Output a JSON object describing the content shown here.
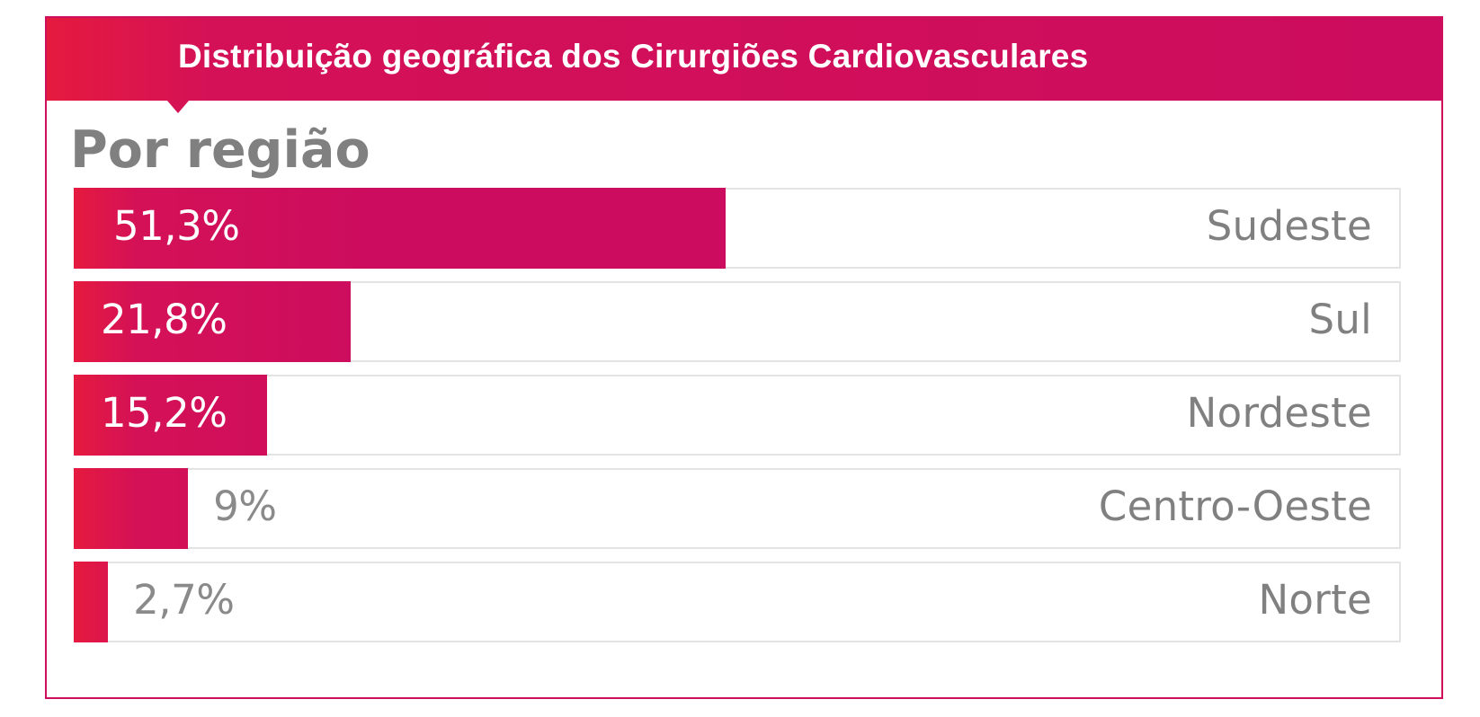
{
  "chart_data": {
    "type": "bar",
    "orientation": "horizontal",
    "title": "Distribuição geográfica dos Cirurgiões Cardiovasculares",
    "subtitle": "Por região",
    "unit": "%",
    "xlim": [
      0,
      100
    ],
    "grid": false,
    "legend": "none",
    "categories": [
      "Sudeste",
      "Sul",
      "Nordeste",
      "Centro-Oeste",
      "Norte"
    ],
    "values": [
      51.3,
      21.8,
      15.2,
      9,
      2.7
    ],
    "labels": [
      "51,3%",
      "21,8%",
      "15,2%",
      "9%",
      "2,7%"
    ]
  },
  "colors": {
    "accent": "#cc0c5e",
    "accent_start": "#e51a3f",
    "track_border": "#e3e3e3",
    "text_gray": "#808080"
  }
}
